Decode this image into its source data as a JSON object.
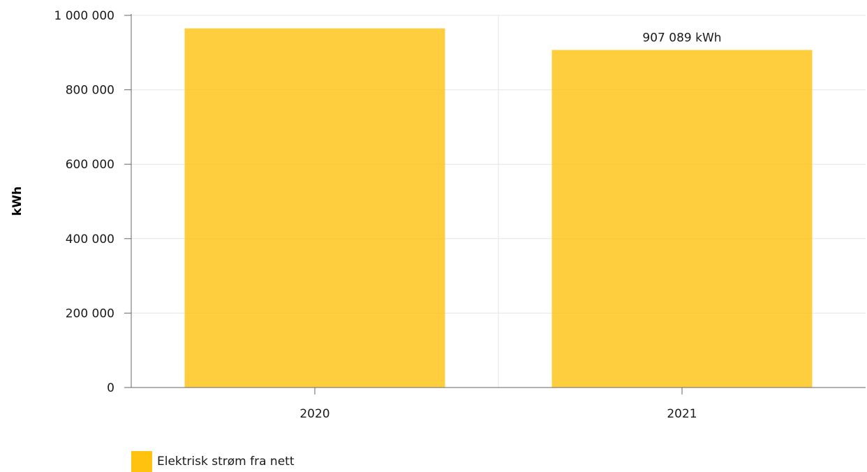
{
  "chart_data": {
    "type": "bar",
    "title": "",
    "xlabel": "",
    "ylabel": "kWh",
    "categories": [
      "2020",
      "2021"
    ],
    "series": [
      {
        "name": "Elektrisk strøm fra nett",
        "values": [
          965000,
          907089
        ],
        "color": "#ffc20e",
        "data_labels": [
          null,
          "907 089 kWh"
        ]
      }
    ],
    "ylim": [
      0,
      1000000
    ],
    "yticks": [
      0,
      200000,
      400000,
      600000,
      800000,
      1000000
    ],
    "ytick_labels": [
      "0",
      "200 000",
      "400 000",
      "600 000",
      "800 000",
      "1 000 000"
    ],
    "grid": true,
    "legend_position": "bottom-left"
  }
}
